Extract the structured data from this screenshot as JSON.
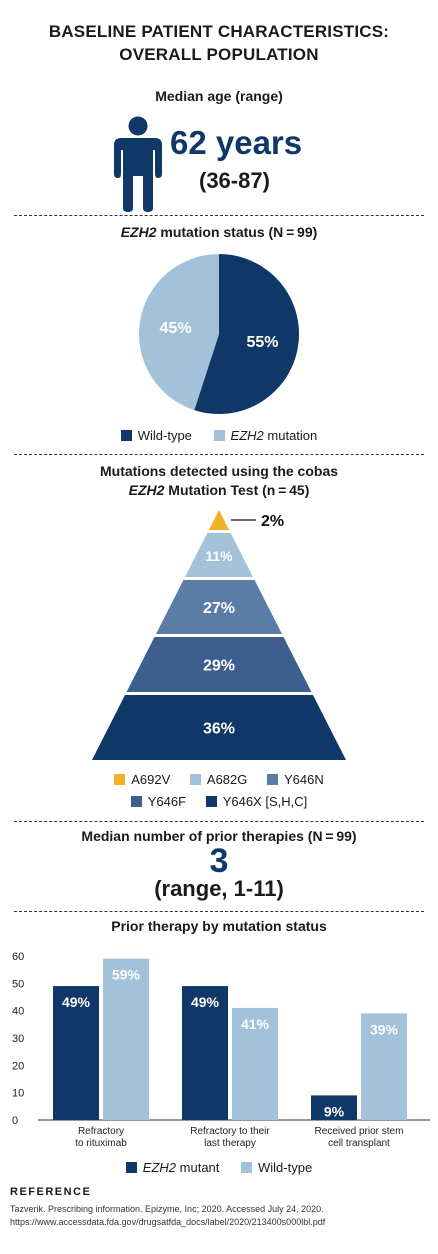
{
  "title_line1": "BASELINE PATIENT CHARACTERISTICS:",
  "title_line2": "OVERALL POPULATION",
  "age": {
    "heading": "Median age (range)",
    "value": "62 years",
    "range": "(36-87)"
  },
  "mutation_status": {
    "heading_italic": "EZH2",
    "heading_rest": " mutation status (N = 99)",
    "legend": [
      {
        "label": "Wild-type",
        "italic": "",
        "color": "#0f3768"
      },
      {
        "label": " mutation",
        "italic": "EZH2",
        "color": "#a3c1d8"
      }
    ]
  },
  "cobas": {
    "heading_line1": "Mutations detected using the cobas",
    "heading_italic": "EZH2",
    "heading_rest": " Mutation Test (n = 45)",
    "legend": [
      {
        "label": "A692V",
        "color": "#f2b227"
      },
      {
        "label": "A682G",
        "color": "#a3c1d8"
      },
      {
        "label": "Y646N",
        "color": "#5b7ca5"
      },
      {
        "label": "Y646F",
        "color": "#3c5f8f"
      },
      {
        "label": "Y646X [S,H,C]",
        "color": "#0f3768"
      }
    ]
  },
  "prior": {
    "heading": "Median number of prior therapies (N = 99)",
    "value": "3",
    "range": "(range, 1-11)"
  },
  "bars": {
    "heading": "Prior therapy by mutation status",
    "legend": [
      {
        "label": " mutant",
        "italic": "EZH2",
        "color": "#0f3768"
      },
      {
        "label": "Wild-type",
        "italic": "",
        "color": "#a3c1d8"
      }
    ]
  },
  "reference": {
    "heading": "REFERENCE",
    "line1": "Tazverik. Prescribing information. Epizyme, Inc; 2020. Accessed July 24, 2020.",
    "line2": "https://www.accessdata.fda.gov/drugsatfda_docs/label/2020/213400s000lbl.pdf"
  },
  "chart_data": [
    {
      "type": "pie",
      "title": "EZH2 mutation status (N = 99)",
      "categories": [
        "Wild-type",
        "EZH2 mutation"
      ],
      "values": [
        55,
        45
      ],
      "labels": [
        "55%",
        "45%"
      ],
      "colors": [
        "#0f3768",
        "#a3c1d8"
      ],
      "legend": "bottom"
    },
    {
      "type": "pyramid",
      "title": "Mutations detected using the cobas EZH2 Mutation Test (n = 45)",
      "categories": [
        "A692V",
        "A682G",
        "Y646N",
        "Y646F",
        "Y646X [S,H,C]"
      ],
      "values": [
        2,
        11,
        27,
        29,
        36
      ],
      "labels": [
        "2%",
        "11%",
        "27%",
        "29%",
        "36%"
      ],
      "colors": [
        "#f2b227",
        "#a3c1d8",
        "#5b7ca5",
        "#3c5f8f",
        "#0f3768"
      ],
      "legend": "bottom"
    },
    {
      "type": "bar",
      "title": "Prior therapy by mutation status",
      "categories": [
        [
          "Refractory",
          "to rituximab"
        ],
        [
          "Refractory to their",
          "last therapy"
        ],
        [
          "Received prior stem",
          "cell transplant"
        ]
      ],
      "series": [
        {
          "name": "EZH2 mutant",
          "values": [
            49,
            49,
            9
          ],
          "labels": [
            "49%",
            "49%",
            "9%"
          ],
          "color": "#0f3768"
        },
        {
          "name": "Wild-type",
          "values": [
            59,
            41,
            39
          ],
          "labels": [
            "59%",
            "41%",
            "39%"
          ],
          "color": "#a3c1d8"
        }
      ],
      "ylim": [
        0,
        60
      ],
      "yticks": [
        "0",
        "10",
        "20",
        "30",
        "40",
        "50",
        "60"
      ],
      "grid": false,
      "legend": "bottom"
    }
  ]
}
